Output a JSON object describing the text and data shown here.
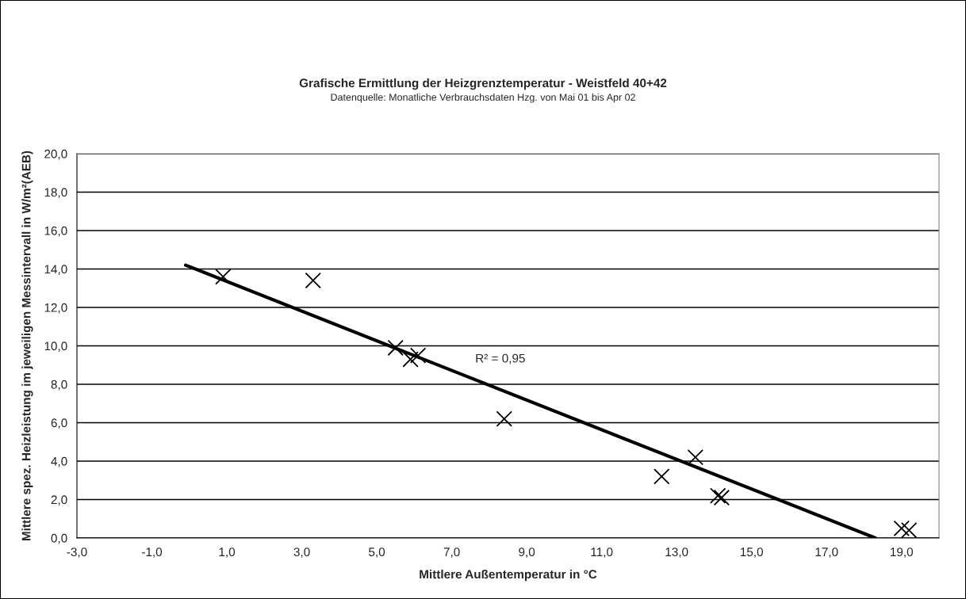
{
  "chart_data": {
    "type": "scatter",
    "title": "Grafische Ermittlung der Heizgrenztemperatur - Weistfeld 40+42",
    "subtitle": "Datenquelle: Monatliche Verbrauchsdaten Hzg. von Mai 01 bis Apr 02",
    "xlabel": "Mittlere Außentemperatur in °C",
    "ylabel": "Mittlere spez. Heizleistung im jeweiligen Messintervall in W/m²(AEB)",
    "marker": "cross",
    "grid": "y",
    "legend": false,
    "series": [
      {
        "color": "#000000",
        "x": [
          0.9,
          3.3,
          5.5,
          5.9,
          6.1,
          8.4,
          12.6,
          13.5,
          14.1,
          14.2,
          19.0,
          19.2
        ],
        "values": [
          13.6,
          13.4,
          9.9,
          9.3,
          9.5,
          6.2,
          3.2,
          4.2,
          2.2,
          2.1,
          0.5,
          0.4
        ]
      },
      {
        "type": "line",
        "color": "#000000",
        "marker": "none",
        "line_style": "solid",
        "x": [
          -0.1,
          18.3
        ],
        "values": [
          14.2,
          0.0
        ]
      }
    ],
    "annotations": [
      "R² = 0,95"
    ],
    "xlim": [
      -3,
      20
    ],
    "ylim": [
      0,
      20
    ],
    "xticks": [
      {
        "value": -3,
        "label": "-3,0"
      },
      {
        "value": -1,
        "label": "-1,0"
      },
      {
        "value": 1,
        "label": "1,0"
      },
      {
        "value": 3,
        "label": "3,0"
      },
      {
        "value": 5,
        "label": "5,0"
      },
      {
        "value": 7,
        "label": "7,0"
      },
      {
        "value": 9,
        "label": "9,0"
      },
      {
        "value": 11,
        "label": "11,0"
      },
      {
        "value": 13,
        "label": "13,0"
      },
      {
        "value": 15,
        "label": "15,0"
      },
      {
        "value": 17,
        "label": "17,0"
      },
      {
        "value": 19,
        "label": "19,0"
      }
    ],
    "yticks": [
      {
        "value": 0,
        "label": "0,0"
      },
      {
        "value": 2,
        "label": "2,0"
      },
      {
        "value": 4,
        "label": "4,0"
      },
      {
        "value": 6,
        "label": "6,0"
      },
      {
        "value": 8,
        "label": "8,0"
      },
      {
        "value": 10,
        "label": "10,0"
      },
      {
        "value": 12,
        "label": "12,0"
      },
      {
        "value": 14,
        "label": "14,0"
      },
      {
        "value": 16,
        "label": "16,0"
      },
      {
        "value": 18,
        "label": "18,0"
      },
      {
        "value": 20,
        "label": "20,0"
      }
    ]
  }
}
